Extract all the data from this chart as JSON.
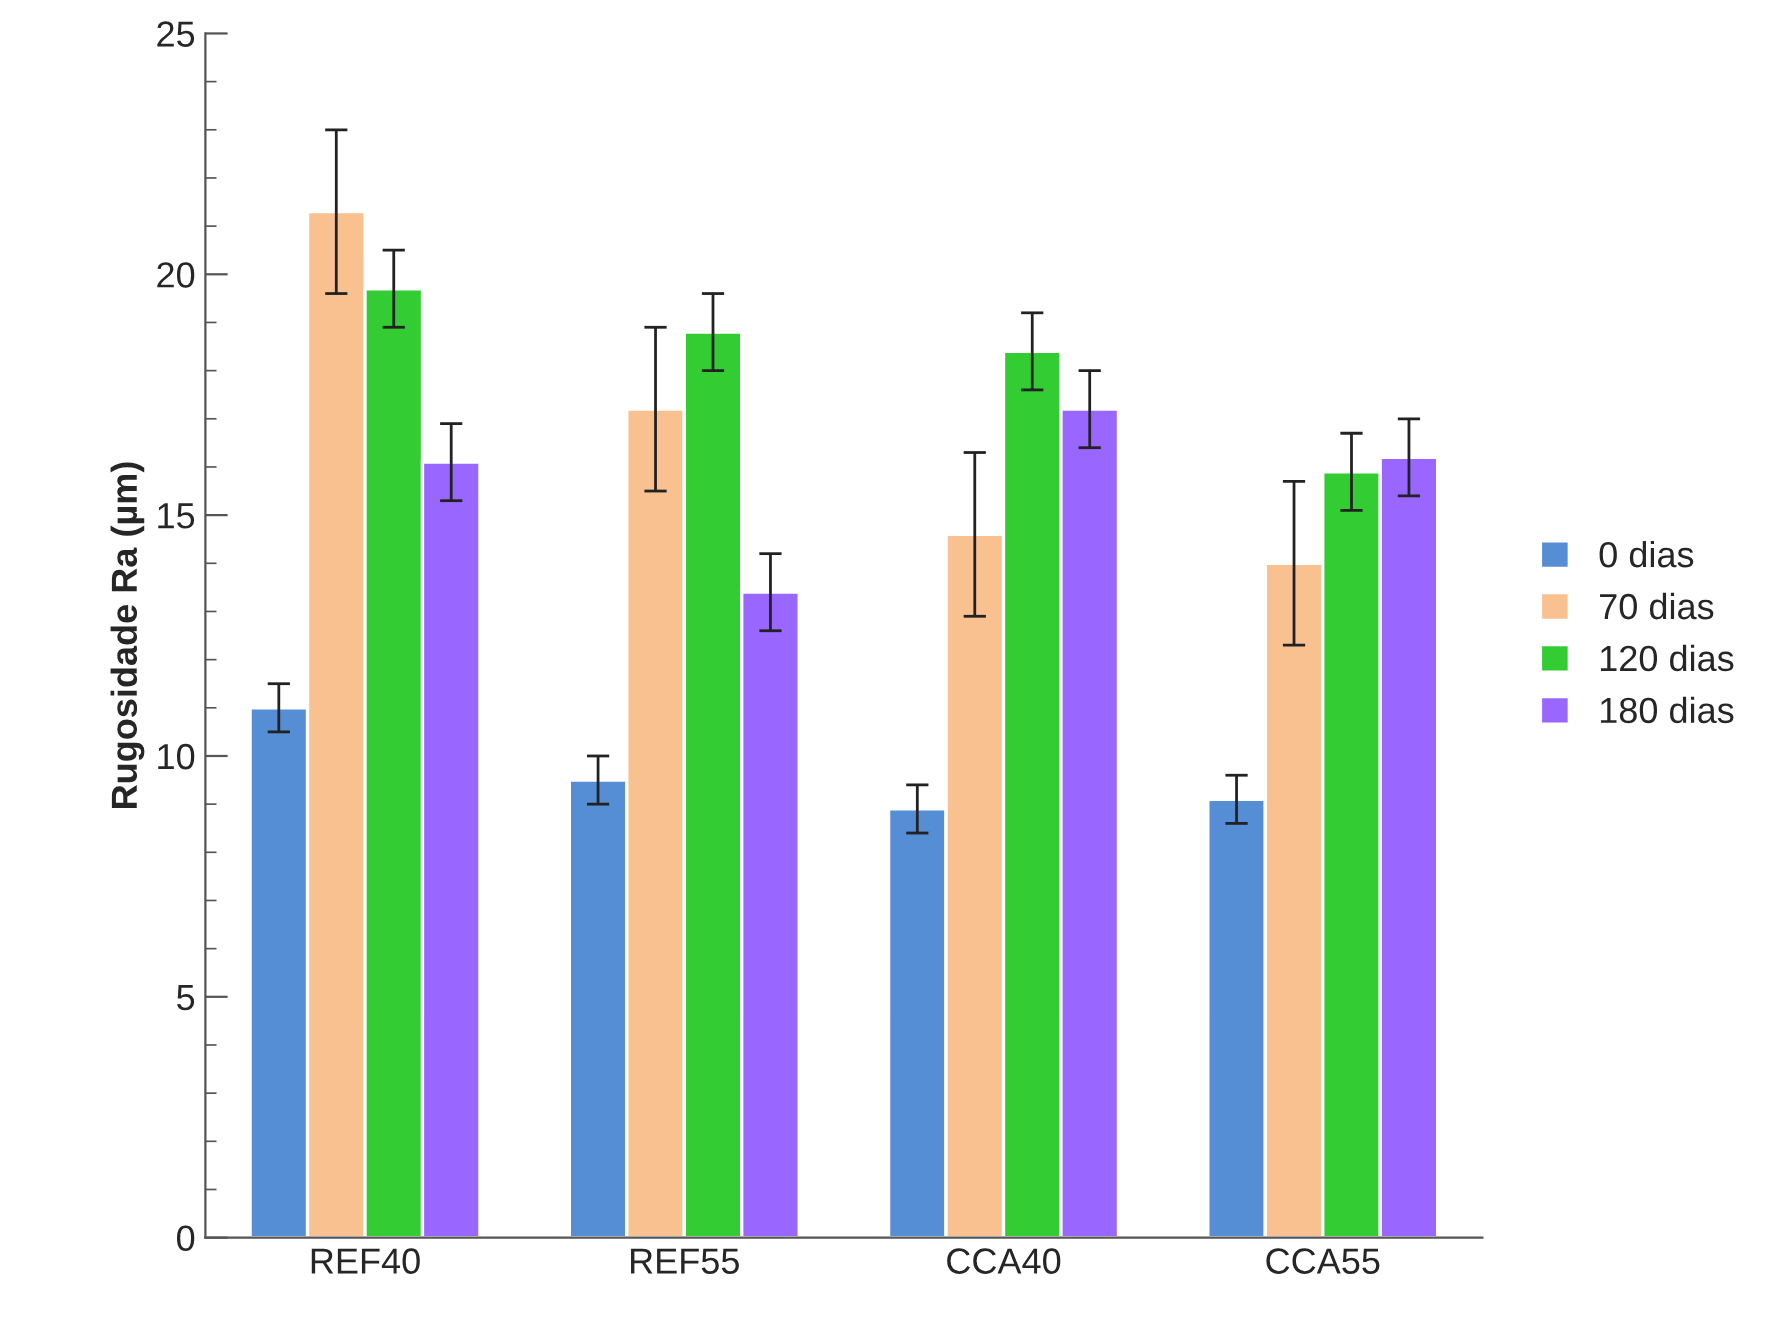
{
  "chart_data": {
    "type": "bar",
    "ylabel": "Rugosidade Ra (µm)",
    "categories": [
      "REF40",
      "REF55",
      "CCA40",
      "CCA55"
    ],
    "series": [
      {
        "name": "0 dias",
        "color": "#558ed5",
        "values": [
          11.0,
          9.5,
          8.9,
          9.1
        ],
        "errors": [
          0.5,
          0.5,
          0.5,
          0.5
        ]
      },
      {
        "name": "70 dias",
        "color": "#f9c090",
        "values": [
          21.3,
          17.2,
          14.6,
          14.0
        ],
        "errors": [
          1.7,
          1.7,
          1.7,
          1.7
        ]
      },
      {
        "name": "120 dias",
        "color": "#33cc33",
        "values": [
          19.7,
          18.8,
          18.4,
          15.9
        ],
        "errors": [
          0.8,
          0.8,
          0.8,
          0.8
        ]
      },
      {
        "name": "180 dias",
        "color": "#9966ff",
        "values": [
          16.1,
          13.4,
          17.2,
          16.2
        ],
        "errors": [
          0.8,
          0.8,
          0.8,
          0.8
        ]
      }
    ],
    "ylim": [
      0,
      25
    ],
    "yticks": [
      0,
      5,
      10,
      15,
      20,
      25
    ],
    "grid": false,
    "legend": "right"
  }
}
